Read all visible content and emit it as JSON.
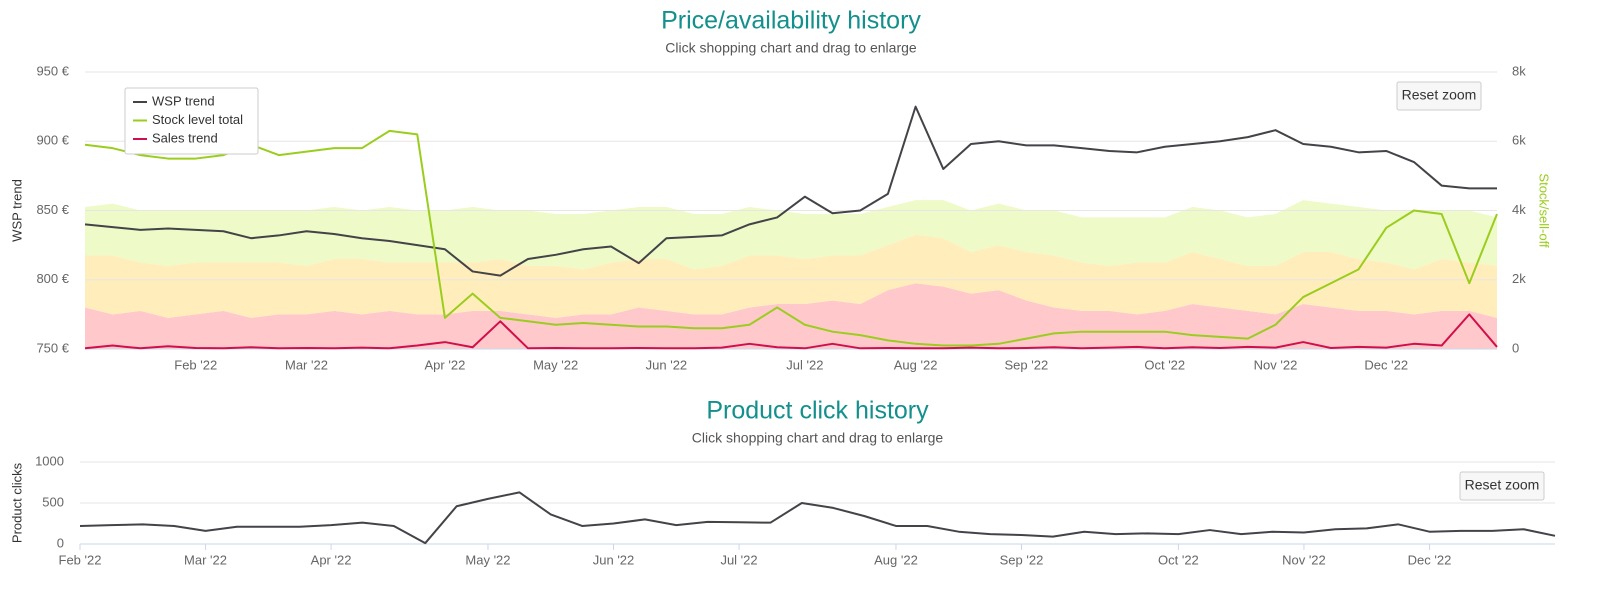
{
  "chart_data": [
    {
      "type": "line",
      "title": "Price/availability history",
      "subtitle": "Click shopping chart and drag to enlarge",
      "reset_zoom": "Reset zoom",
      "y_label": "WSP trend",
      "y2_label": "Stock/sell-off",
      "legend": "top-left",
      "grid": true,
      "categories": [
        null,
        null,
        null,
        null,
        "Feb '22",
        null,
        null,
        null,
        "Mar '22",
        null,
        null,
        null,
        null,
        "Apr '22",
        null,
        null,
        null,
        "May '22",
        null,
        null,
        null,
        "Jun '22",
        null,
        null,
        null,
        null,
        "Jul '22",
        null,
        null,
        null,
        "Aug '22",
        null,
        null,
        null,
        "Sep '22",
        null,
        null,
        null,
        null,
        "Oct '22",
        null,
        null,
        null,
        "Nov '22",
        null,
        null,
        null,
        "Dec '22",
        null,
        null,
        null,
        null
      ],
      "ylim": [
        750,
        950
      ],
      "yticks": [
        {
          "value": 750,
          "label": "750 €"
        },
        {
          "value": 800,
          "label": "800 €"
        },
        {
          "value": 850,
          "label": "850 €"
        },
        {
          "value": 900,
          "label": "900 €"
        },
        {
          "value": 950,
          "label": "950 €"
        }
      ],
      "y2lim": [
        0,
        8000
      ],
      "y2ticks": [
        0,
        {
          "value": 2000,
          "label": "2k"
        },
        {
          "value": 4000,
          "label": "4k"
        },
        {
          "value": 6000,
          "label": "6k"
        },
        {
          "value": 8000,
          "label": "8k"
        }
      ],
      "areas": [
        {
          "color": "#ffc9cc",
          "values": [
            1200,
            1000,
            1100,
            900,
            1000,
            1100,
            900,
            1000,
            1000,
            1100,
            1000,
            1100,
            1000,
            1000,
            1100,
            1100,
            1000,
            900,
            1000,
            1000,
            1200,
            1100,
            1000,
            1000,
            1200,
            1300,
            1300,
            1400,
            1300,
            1700,
            1900,
            1800,
            1600,
            1700,
            1400,
            1200,
            1100,
            1100,
            1000,
            1100,
            1300,
            1200,
            1100,
            1000,
            1300,
            1200,
            1100,
            1100,
            1000,
            1100,
            1100,
            900
          ]
        },
        {
          "color": "#ffeebb",
          "values": [
            1500,
            1700,
            1400,
            1500,
            1500,
            1400,
            1600,
            1500,
            1400,
            1500,
            1600,
            1400,
            1500,
            1500,
            1400,
            1500,
            1400,
            1500,
            1300,
            1500,
            1400,
            1500,
            1300,
            1400,
            1500,
            1400,
            1300,
            1300,
            1400,
            1300,
            1400,
            1400,
            1200,
            1300,
            1400,
            1500,
            1400,
            1300,
            1500,
            1400,
            1500,
            1400,
            1300,
            1400,
            1500,
            1600,
            1500,
            1400,
            1300,
            1500,
            1400,
            1500
          ]
        },
        {
          "color": "#eefac8",
          "values": [
            1400,
            1500,
            1500,
            1600,
            1500,
            1500,
            1500,
            1500,
            1600,
            1500,
            1400,
            1600,
            1500,
            1500,
            1600,
            1400,
            1600,
            1500,
            1600,
            1500,
            1500,
            1500,
            1600,
            1500,
            1400,
            1300,
            1300,
            1200,
            1200,
            1100,
            1000,
            1100,
            1200,
            1200,
            1200,
            1300,
            1300,
            1400,
            1300,
            1300,
            1300,
            1400,
            1400,
            1500,
            1500,
            1400,
            1500,
            1500,
            1700,
            1400,
            1500,
            1400
          ]
        }
      ],
      "series": [
        {
          "name": "WSP trend",
          "color": "#434348",
          "values": [
            840,
            838,
            836,
            837,
            836,
            835,
            830,
            832,
            835,
            833,
            830,
            828,
            825,
            822,
            806,
            803,
            815,
            818,
            822,
            824,
            812,
            830,
            831,
            832,
            840,
            845,
            860,
            848,
            850,
            862,
            925,
            880,
            898,
            900,
            897,
            897,
            895,
            893,
            892,
            896,
            898,
            900,
            903,
            908,
            898,
            896,
            892,
            893,
            885,
            868,
            866,
            866
          ]
        },
        {
          "name": "Stock level total",
          "color": "#9acd1e",
          "axis": "y2",
          "values": [
            5900,
            5800,
            5600,
            5500,
            5500,
            5600,
            5900,
            5600,
            5700,
            5800,
            5800,
            6300,
            6200,
            900,
            1600,
            900,
            800,
            700,
            750,
            700,
            650,
            650,
            600,
            600,
            700,
            1200,
            700,
            500,
            400,
            250,
            150,
            100,
            100,
            150,
            300,
            450,
            500,
            500,
            500,
            500,
            400,
            350,
            300,
            700,
            1500,
            1900,
            2300,
            3500,
            4000,
            3900,
            1900,
            3900
          ]
        },
        {
          "name": "Sales trend",
          "color": "#d0104c",
          "axis": "y2",
          "values": [
            20,
            100,
            20,
            80,
            30,
            20,
            50,
            20,
            30,
            20,
            40,
            20,
            100,
            200,
            50,
            800,
            20,
            30,
            20,
            20,
            30,
            20,
            20,
            40,
            150,
            50,
            20,
            150,
            20,
            30,
            20,
            20,
            40,
            20,
            30,
            50,
            20,
            40,
            60,
            20,
            50,
            30,
            60,
            40,
            200,
            30,
            60,
            40,
            150,
            100,
            1000,
            60
          ]
        }
      ]
    },
    {
      "type": "line",
      "title": "Product click history",
      "subtitle": "Click shopping chart and drag to enlarge",
      "reset_zoom": "Reset zoom",
      "y_label": "Product clicks",
      "grid": true,
      "color": "#434348",
      "categories": [
        "Feb '22",
        null,
        null,
        null,
        "Mar '22",
        null,
        null,
        null,
        "Apr '22",
        null,
        null,
        null,
        null,
        "May '22",
        null,
        null,
        null,
        "Jun '22",
        null,
        null,
        null,
        "Jul '22",
        null,
        null,
        null,
        null,
        "Aug '22",
        null,
        null,
        null,
        "Sep '22",
        null,
        null,
        null,
        null,
        "Oct '22",
        null,
        null,
        null,
        "Nov '22",
        null,
        null,
        null,
        "Dec '22",
        null,
        null,
        null,
        null
      ],
      "values": [
        220,
        230,
        240,
        220,
        160,
        210,
        210,
        210,
        230,
        260,
        220,
        10,
        460,
        550,
        630,
        360,
        220,
        250,
        300,
        230,
        270,
        265,
        260,
        500,
        440,
        340,
        220,
        220,
        150,
        120,
        110,
        90,
        150,
        120,
        130,
        120,
        170,
        120,
        150,
        140,
        180,
        190,
        240,
        150,
        160,
        160,
        180,
        100
      ],
      "ylim": [
        0,
        1000
      ],
      "yticks": [
        0,
        500,
        1000
      ]
    }
  ]
}
